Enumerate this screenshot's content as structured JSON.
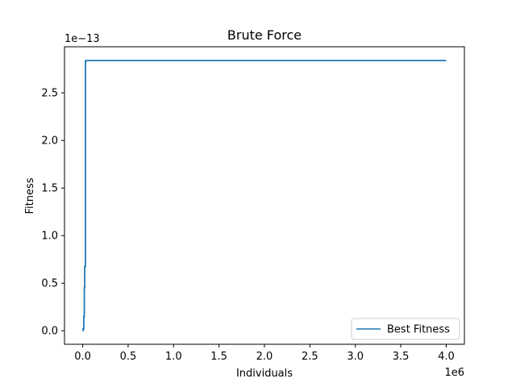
{
  "chart_data": {
    "type": "line",
    "title": "Brute Force",
    "xlabel": "Individuals",
    "ylabel": "Fitness",
    "x_offset_label": "1e6",
    "y_offset_label": "1e−13",
    "xlim": [
      -0.2,
      4.2
    ],
    "ylim": [
      -0.142,
      2.985
    ],
    "x_scale_note": "x values in units of 1e6",
    "y_scale_note": "y values in units of 1e-13",
    "x_ticks": [
      0.0,
      0.5,
      1.0,
      1.5,
      2.0,
      2.5,
      3.0,
      3.5,
      4.0
    ],
    "x_tick_labels": [
      "0.0",
      "0.5",
      "1.0",
      "1.5",
      "2.0",
      "2.5",
      "3.0",
      "3.5",
      "4.0"
    ],
    "y_ticks": [
      0.0,
      0.5,
      1.0,
      1.5,
      2.0,
      2.5
    ],
    "y_tick_labels": [
      "0.0",
      "0.5",
      "1.0",
      "1.5",
      "2.0",
      "2.5"
    ],
    "grid": false,
    "legend_position": "lower right",
    "series": [
      {
        "name": "Best Fitness",
        "color": "#1f77b4",
        "x": [
          0.0,
          0.005,
          0.005,
          0.012,
          0.012,
          0.018,
          0.018,
          0.022,
          0.022,
          0.026,
          0.026,
          0.03,
          0.03,
          0.035,
          0.035,
          4.0
        ],
        "y": [
          0.0,
          0.0,
          0.02,
          0.02,
          0.15,
          0.15,
          0.45,
          0.45,
          0.67,
          0.67,
          0.68,
          0.68,
          2.83,
          2.83,
          2.84,
          2.84
        ]
      }
    ]
  }
}
